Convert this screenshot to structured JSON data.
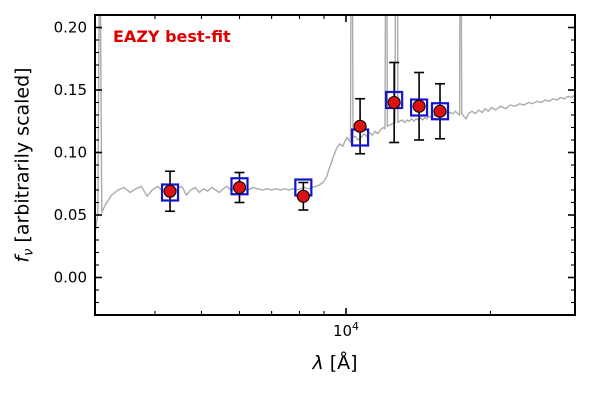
{
  "annotation": {
    "label": "EAZY best-fit"
  },
  "colors": {
    "spectrum": "#ababab",
    "model_marker": "#1414cc",
    "observed_marker": "#dd1111",
    "errorbar": "#000000",
    "annotation": "#dd0000",
    "frame": "#000000"
  },
  "axes": {
    "xlabel_symbol": "λ",
    "xlabel_rest": " [Å]",
    "ylabel_symbol": "f",
    "ylabel_sub": "ν",
    "ylabel_rest": " [arbitrarily scaled]",
    "x_scale": "log",
    "x_range": [
      3000,
      30000
    ],
    "y_range": [
      -0.03,
      0.21
    ],
    "x_major_tick": {
      "value": 10000,
      "label_base": "10",
      "label_exp": "4"
    },
    "x_minor_ticks": [
      4000,
      5000,
      6000,
      7000,
      8000,
      9000,
      20000
    ],
    "y_major_ticks": [
      {
        "value": 0.0,
        "label": "0.00"
      },
      {
        "value": 0.05,
        "label": "0.05"
      },
      {
        "value": 0.1,
        "label": "0.10"
      },
      {
        "value": 0.15,
        "label": "0.15"
      },
      {
        "value": 0.2,
        "label": "0.20"
      }
    ],
    "y_minor_step": 0.01
  },
  "chart_data": {
    "type": "line+scatter",
    "xlabel": "lambda [Angstrom]",
    "ylabel": "f_nu [arbitrarily scaled]",
    "series": [
      {
        "name": "eazy-model-spectrum",
        "type": "line",
        "points": [
          [
            3000,
            0.036
          ],
          [
            3040,
            0.05
          ],
          [
            3070,
            0.3
          ],
          [
            3100,
            0.052
          ],
          [
            3150,
            0.058
          ],
          [
            3250,
            0.066
          ],
          [
            3350,
            0.07
          ],
          [
            3450,
            0.072
          ],
          [
            3550,
            0.068
          ],
          [
            3650,
            0.071
          ],
          [
            3750,
            0.073
          ],
          [
            3850,
            0.065
          ],
          [
            3950,
            0.07
          ],
          [
            4050,
            0.073
          ],
          [
            4150,
            0.069
          ],
          [
            4250,
            0.072
          ],
          [
            4350,
            0.068
          ],
          [
            4450,
            0.071
          ],
          [
            4550,
            0.073
          ],
          [
            4650,
            0.066
          ],
          [
            4750,
            0.07
          ],
          [
            4850,
            0.072
          ],
          [
            4950,
            0.068
          ],
          [
            5050,
            0.071
          ],
          [
            5150,
            0.069
          ],
          [
            5250,
            0.072
          ],
          [
            5350,
            0.07
          ],
          [
            5450,
            0.068
          ],
          [
            5550,
            0.071
          ],
          [
            5650,
            0.073
          ],
          [
            5750,
            0.07
          ],
          [
            5850,
            0.072
          ],
          [
            5950,
            0.069
          ],
          [
            6100,
            0.071
          ],
          [
            6250,
            0.07
          ],
          [
            6400,
            0.072
          ],
          [
            6550,
            0.071
          ],
          [
            6700,
            0.07
          ],
          [
            6850,
            0.071
          ],
          [
            7000,
            0.07
          ],
          [
            7150,
            0.071
          ],
          [
            7300,
            0.07
          ],
          [
            7450,
            0.071
          ],
          [
            7600,
            0.07
          ],
          [
            7750,
            0.071
          ],
          [
            7900,
            0.07
          ],
          [
            8050,
            0.071
          ],
          [
            8200,
            0.072
          ],
          [
            8350,
            0.071
          ],
          [
            8500,
            0.072
          ],
          [
            8650,
            0.073
          ],
          [
            8800,
            0.074
          ],
          [
            8950,
            0.076
          ],
          [
            9100,
            0.08
          ],
          [
            9250,
            0.088
          ],
          [
            9400,
            0.096
          ],
          [
            9550,
            0.103
          ],
          [
            9700,
            0.107
          ],
          [
            9850,
            0.105
          ],
          [
            9950,
            0.109
          ],
          [
            10050,
            0.112
          ],
          [
            10150,
            0.11
          ],
          [
            10220,
            0.108
          ],
          [
            10280,
            0.45
          ],
          [
            10340,
            0.112
          ],
          [
            10450,
            0.113
          ],
          [
            10600,
            0.11
          ],
          [
            10750,
            0.112
          ],
          [
            10900,
            0.115
          ],
          [
            11050,
            0.113
          ],
          [
            11200,
            0.116
          ],
          [
            11350,
            0.114
          ],
          [
            11500,
            0.117
          ],
          [
            11650,
            0.115
          ],
          [
            11800,
            0.118
          ],
          [
            11950,
            0.12
          ],
          [
            12060,
            0.119
          ],
          [
            12130,
            0.42
          ],
          [
            12200,
            0.121
          ],
          [
            12350,
            0.122
          ],
          [
            12500,
            0.123
          ],
          [
            12650,
            0.124
          ],
          [
            12740,
            0.5
          ],
          [
            12830,
            0.124
          ],
          [
            12950,
            0.125
          ],
          [
            13100,
            0.126
          ],
          [
            13250,
            0.124
          ],
          [
            13400,
            0.126
          ],
          [
            13550,
            0.125
          ],
          [
            13700,
            0.127
          ],
          [
            13850,
            0.125
          ],
          [
            14000,
            0.127
          ],
          [
            14150,
            0.126
          ],
          [
            14300,
            0.128
          ],
          [
            14450,
            0.126
          ],
          [
            14600,
            0.128
          ],
          [
            14750,
            0.127
          ],
          [
            14900,
            0.129
          ],
          [
            15050,
            0.128
          ],
          [
            15200,
            0.13
          ],
          [
            15350,
            0.129
          ],
          [
            15500,
            0.131
          ],
          [
            15650,
            0.13
          ],
          [
            15800,
            0.131
          ],
          [
            15950,
            0.13
          ],
          [
            16100,
            0.132
          ],
          [
            16300,
            0.131
          ],
          [
            16500,
            0.132
          ],
          [
            16700,
            0.131
          ],
          [
            16900,
            0.133
          ],
          [
            17100,
            0.131
          ],
          [
            17250,
            0.13
          ],
          [
            17330,
            0.43
          ],
          [
            17420,
            0.131
          ],
          [
            17600,
            0.129
          ],
          [
            17800,
            0.127
          ],
          [
            18000,
            0.131
          ],
          [
            18300,
            0.133
          ],
          [
            18600,
            0.131
          ],
          [
            18900,
            0.134
          ],
          [
            19200,
            0.132
          ],
          [
            19500,
            0.135
          ],
          [
            19800,
            0.133
          ],
          [
            20100,
            0.136
          ],
          [
            20500,
            0.134
          ],
          [
            21000,
            0.137
          ],
          [
            21500,
            0.135
          ],
          [
            22000,
            0.138
          ],
          [
            22500,
            0.137
          ],
          [
            23000,
            0.139
          ],
          [
            23500,
            0.138
          ],
          [
            24000,
            0.14
          ],
          [
            24500,
            0.139
          ],
          [
            25000,
            0.141
          ],
          [
            25500,
            0.14
          ],
          [
            26000,
            0.142
          ],
          [
            26500,
            0.141
          ],
          [
            27000,
            0.143
          ],
          [
            27500,
            0.142
          ],
          [
            28000,
            0.144
          ],
          [
            28500,
            0.143
          ],
          [
            29000,
            0.145
          ],
          [
            29500,
            0.144
          ],
          [
            30000,
            0.146
          ]
        ]
      },
      {
        "name": "model-photometry",
        "type": "scatter",
        "marker": "open-square",
        "x": [
          4300,
          6000,
          8150,
          10700,
          12600,
          14200,
          15700
        ],
        "y": [
          0.068,
          0.073,
          0.072,
          0.112,
          0.142,
          0.136,
          0.133
        ]
      },
      {
        "name": "observed-photometry",
        "type": "scatter",
        "marker": "filled-circle",
        "x": [
          4300,
          6000,
          8150,
          10700,
          12600,
          14200,
          15700
        ],
        "y": [
          0.069,
          0.072,
          0.065,
          0.121,
          0.14,
          0.137,
          0.133
        ],
        "yerr": [
          0.016,
          0.012,
          0.011,
          0.022,
          0.032,
          0.027,
          0.022
        ]
      }
    ]
  }
}
